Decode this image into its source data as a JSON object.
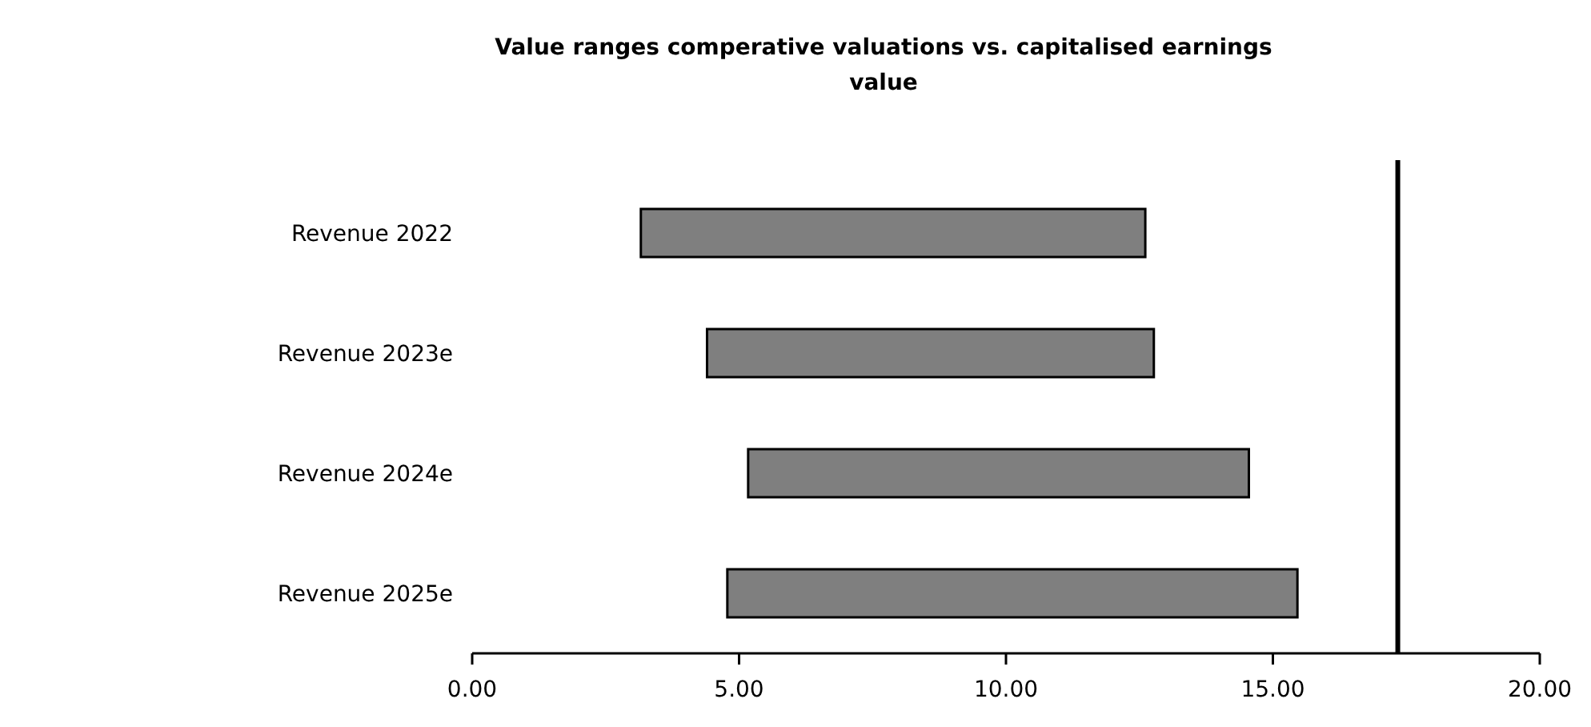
{
  "chart_data": {
    "type": "bar",
    "orientation": "horizontal",
    "title": "Value ranges comperative  valuations vs. capitalised earnings value",
    "categories": [
      "Revenue 2022",
      "Revenue 2023e",
      "Revenue 2024e",
      "Revenue 2025e"
    ],
    "base": [
      3.16,
      4.4,
      5.17,
      4.78
    ],
    "values": [
      9.45,
      8.37,
      9.38,
      10.68
    ],
    "color": "#7f7f7f",
    "xlim": [
      0,
      20
    ],
    "xticks": [
      {
        "value": 0,
        "label": "0.00"
      },
      {
        "value": 5,
        "label": "5.00"
      },
      {
        "value": 10,
        "label": "10.00"
      },
      {
        "value": 15,
        "label": "15.00"
      },
      {
        "value": 20,
        "label": "20.00"
      }
    ],
    "ref_lines": [
      {
        "axis": "x",
        "value": 17.34,
        "color": "#000000"
      }
    ],
    "grid": false
  }
}
